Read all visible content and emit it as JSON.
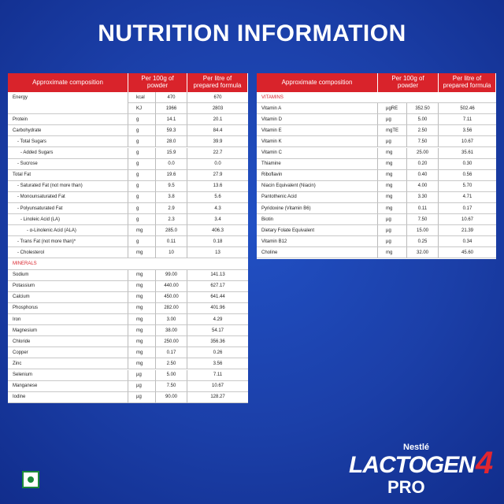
{
  "title": "NUTRITION INFORMATION",
  "tables": [
    {
      "headers": [
        "Approximate composition",
        "Per 100g of powder",
        "Per litre of prepared formula"
      ],
      "rows": [
        [
          "Energy",
          "kcal",
          "470",
          "670"
        ],
        [
          null,
          "KJ",
          "1966",
          "2803"
        ],
        [
          "Protein",
          "g",
          "14.1",
          "20.1"
        ],
        [
          "Carbohydrate",
          "g",
          "59.3",
          "84.4"
        ],
        [
          "- Total Sugars",
          "g",
          "28.0",
          "39.9"
        ],
        [
          "- Added Sugars",
          "g",
          "15.9",
          "22.7"
        ],
        [
          "- Sucrose",
          "g",
          "0.0",
          "0.0"
        ],
        [
          "Total Fat",
          "g",
          "19.6",
          "27.9"
        ],
        [
          "- Saturated Fat (not more than)",
          "g",
          "9.5",
          "13.6"
        ],
        [
          "- Monounsaturated Fat",
          "g",
          "3.8",
          "5.6"
        ],
        [
          "- Polyunsaturated Fat",
          "g",
          "2.9",
          "4.3"
        ],
        [
          "- Linoleic Acid (LA)",
          "g",
          "2.3",
          "3.4"
        ],
        [
          "- α-Linolenic Acid (ALA)",
          "mg",
          "285.0",
          "406.3"
        ],
        [
          "- Trans Fat (not more than)*",
          "g",
          "0.11",
          "0.18"
        ],
        [
          "- Cholesterol",
          "mg",
          "10",
          "13"
        ],
        {
          "section": "MINERALS"
        },
        [
          "Sodium",
          "mg",
          "99.00",
          "141.13"
        ],
        [
          "Potassium",
          "mg",
          "440.00",
          "627.17"
        ],
        [
          "Calcium",
          "mg",
          "450.00",
          "641.44"
        ],
        [
          "Phosphorus",
          "mg",
          "282.00",
          "401.96"
        ],
        [
          "Iron",
          "mg",
          "3.00",
          "4.29"
        ],
        [
          "Magnesium",
          "mg",
          "38.00",
          "54.17"
        ],
        [
          "Chloride",
          "mg",
          "250.00",
          "356.36"
        ],
        [
          "Copper",
          "mg",
          "0.17",
          "0.26"
        ],
        [
          "Zinc",
          "mg",
          "2.50",
          "3.56"
        ],
        [
          "Selenium",
          "µg",
          "5.00",
          "7.11"
        ],
        [
          "Manganese",
          "µg",
          "7.50",
          "10.67"
        ],
        [
          "Iodine",
          "µg",
          "90.00",
          "128.27"
        ]
      ]
    },
    {
      "headers": [
        "Approximate composition",
        "Per 100g of powder",
        "Per litre of prepared formula"
      ],
      "rows": [
        {
          "section": "VITAMINS"
        },
        [
          "Vitamin A",
          "µgRE",
          "352.50",
          "502.46"
        ],
        [
          "Vitamin D",
          "µg",
          "5.00",
          "7.11"
        ],
        [
          "Vitamin E",
          "mgTE",
          "2.50",
          "3.56"
        ],
        [
          "Vitamin K",
          "µg",
          "7.50",
          "10.67"
        ],
        [
          "Vitamin C",
          "mg",
          "25.00",
          "35.61"
        ],
        [
          "Thiamine",
          "mg",
          "0.20",
          "0.30"
        ],
        [
          "Riboflavin",
          "mg",
          "0.40",
          "0.56"
        ],
        [
          "Niacin Equivalent (Niacin)",
          "mg",
          "4.00",
          "5.70"
        ],
        [
          "Pantothenic Acid",
          "mg",
          "3.30",
          "4.71"
        ],
        [
          "Pyridoxine (Vitamin B6)",
          "mg",
          "0.11",
          "0.17"
        ],
        [
          "Biotin",
          "µg",
          "7.50",
          "10.67"
        ],
        [
          "Dietary Folate Equivalent",
          "µg",
          "15.00",
          "21.39"
        ],
        [
          "Vitamin B12",
          "µg",
          "0.25",
          "0.34"
        ],
        [
          "Choline",
          "mg",
          "32.00",
          "45.60"
        ]
      ]
    }
  ],
  "brand": {
    "maker": "Nestlé",
    "name": "LACTOGEN",
    "stage": "4",
    "variant": "PRO"
  }
}
